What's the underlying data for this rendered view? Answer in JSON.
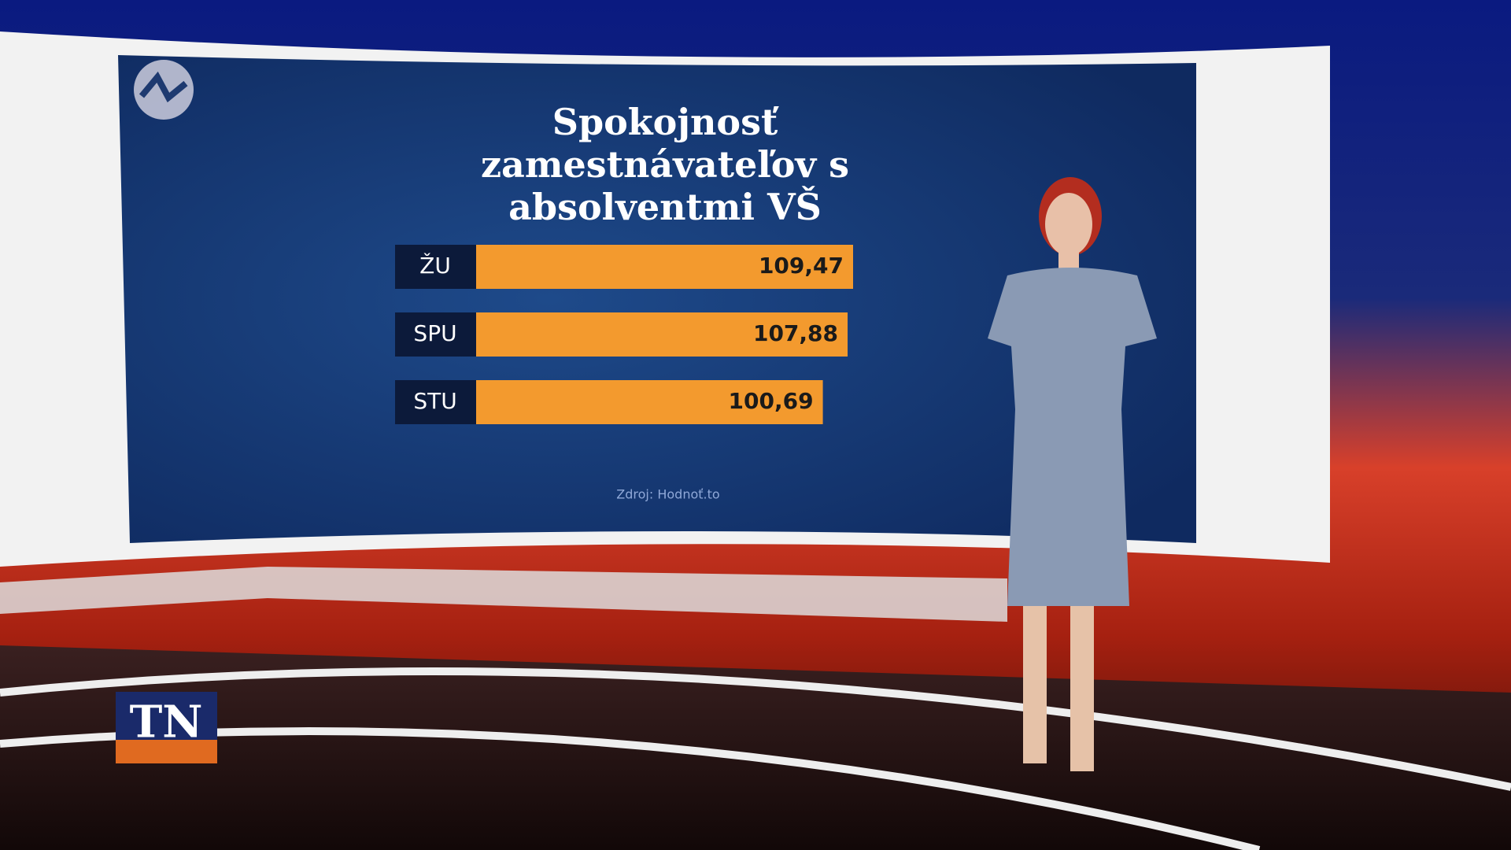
{
  "channel_logo": "TN",
  "chart_data": {
    "type": "bar",
    "orientation": "horizontal",
    "title": "Spokojnosť zamestnávateľov s absolventmi VŠ",
    "categories": [
      "ŽU",
      "SPU",
      "STU"
    ],
    "values": [
      109.47,
      107.88,
      100.69
    ],
    "value_labels": [
      "109,47",
      "107,88",
      "100,69"
    ],
    "color": "#f39a2e",
    "source": "Zdroj: Hodnoť.to"
  }
}
